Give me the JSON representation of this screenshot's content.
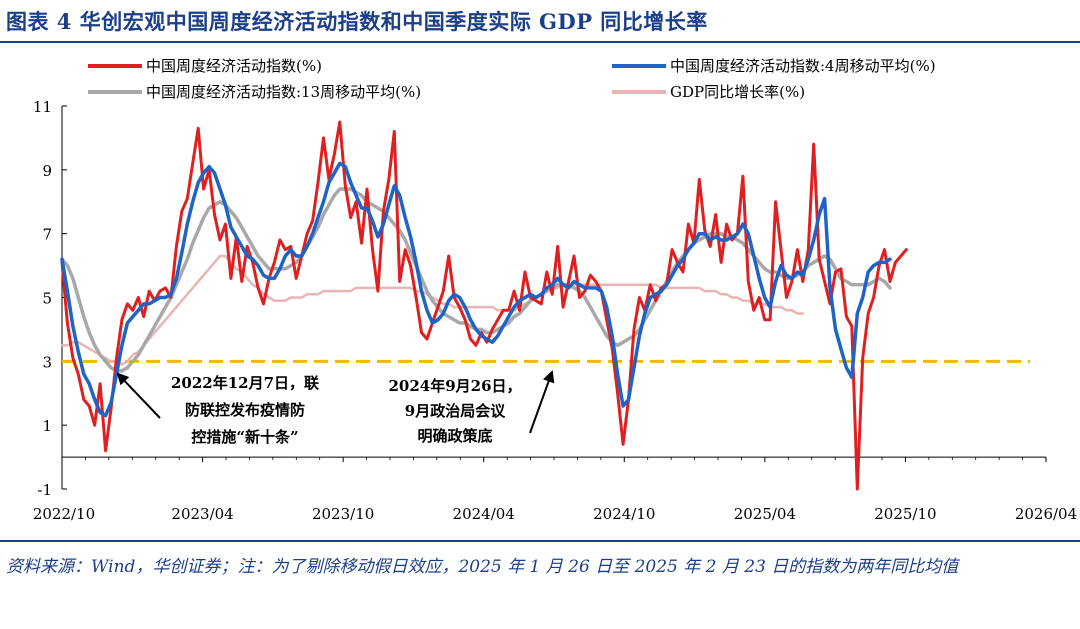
{
  "title": "图表 4   华创宏观中国周度经济活动指数和中国季度实际 GDP 同比增长率",
  "source_note": "资料来源：Wind，华创证券；注：为了剔除移动假日效应，2025 年 1 月 26 日至 2025 年 2 月 23 日的指数为两年同比均值",
  "chart_data": {
    "type": "line",
    "x_range": [
      "2022-10",
      "2026-04"
    ],
    "ylim": [
      -1,
      11
    ],
    "yticks": [
      -1,
      1,
      3,
      5,
      7,
      9,
      11
    ],
    "xticks": [
      "2022/10",
      "2023/04",
      "2023/10",
      "2024/04",
      "2024/10",
      "2025/04",
      "2025/10",
      "2026/04"
    ],
    "grid": false,
    "legend_position": "top",
    "reference_line": {
      "y": 3,
      "style": "dashed",
      "color": "#f5b800"
    },
    "series": [
      {
        "name": "中国周度经济活动指数(%)",
        "color": "#e02020",
        "x_start": 0,
        "x_step": 0.2325,
        "values": [
          6.1,
          4.2,
          3.1,
          2.6,
          1.8,
          1.6,
          1.0,
          2.3,
          0.2,
          1.5,
          3.1,
          4.3,
          4.8,
          4.6,
          5.0,
          4.4,
          5.2,
          4.9,
          5.2,
          5.3,
          5.0,
          6.6,
          7.7,
          8.1,
          9.2,
          10.3,
          8.4,
          9.0,
          7.6,
          6.8,
          7.3,
          5.6,
          6.9,
          5.5,
          6.6,
          6.1,
          5.3,
          4.8,
          5.6,
          6.1,
          6.8,
          6.5,
          6.6,
          5.6,
          6.3,
          7.0,
          7.4,
          8.6,
          10.0,
          8.7,
          9.5,
          10.5,
          8.5,
          7.5,
          8.0,
          6.7,
          8.4,
          6.5,
          5.2,
          7.7,
          8.7,
          10.2,
          5.5,
          6.5,
          6.0,
          5.0,
          3.9,
          3.7,
          4.2,
          4.7,
          5.2,
          6.3,
          5.0,
          4.7,
          4.3,
          3.7,
          3.5,
          3.9,
          3.6,
          4.0,
          4.3,
          4.6,
          4.6,
          5.2,
          4.6,
          5.8,
          5.0,
          4.9,
          4.8,
          5.8,
          5.1,
          6.6,
          4.7,
          5.5,
          6.3,
          5.0,
          5.2,
          5.7,
          5.5,
          5.2,
          4.3,
          3.4,
          2.0,
          0.4,
          1.8,
          4.0,
          5.0,
          4.6,
          5.4,
          4.9,
          5.3,
          5.4,
          6.5,
          6.1,
          5.8,
          7.3,
          6.7,
          8.7,
          7.1,
          6.6,
          7.6,
          6.1,
          7.3,
          6.8,
          7.0,
          8.8,
          5.5,
          4.6,
          5.0,
          4.3,
          4.3,
          8.0,
          6.5,
          5.0,
          5.5,
          6.5,
          5.5,
          6.5,
          9.8,
          6.2,
          5.5,
          4.8,
          5.8,
          5.9,
          4.4,
          4.1,
          -1.0,
          3.1,
          4.5,
          5.0,
          6.0,
          6.5,
          5.5,
          6.1,
          6.3,
          6.5
        ]
      },
      {
        "name": "中国周度经济活动指数:4周移动平均(%)",
        "color": "#1f63c6",
        "x_start": 0,
        "x_step": 0.2325,
        "values": [
          6.2,
          5.2,
          4.1,
          3.3,
          2.6,
          2.3,
          1.8,
          1.4,
          1.3,
          1.7,
          2.6,
          3.5,
          4.2,
          4.4,
          4.6,
          4.8,
          4.8,
          4.9,
          5.0,
          5.0,
          5.1,
          5.6,
          6.4,
          7.3,
          8.0,
          8.6,
          8.9,
          9.1,
          8.9,
          8.4,
          7.9,
          7.2,
          6.9,
          6.6,
          6.3,
          6.2,
          6.0,
          5.7,
          5.6,
          5.6,
          5.9,
          6.3,
          6.5,
          6.3,
          6.3,
          6.6,
          7.0,
          7.5,
          8.0,
          8.6,
          8.9,
          9.2,
          9.1,
          8.6,
          8.2,
          7.8,
          7.8,
          7.4,
          6.9,
          7.3,
          7.9,
          8.5,
          8.2,
          7.5,
          6.9,
          6.1,
          5.2,
          4.6,
          4.2,
          4.3,
          4.5,
          4.9,
          5.1,
          5.0,
          4.7,
          4.3,
          4.0,
          3.8,
          3.7,
          3.6,
          3.8,
          4.1,
          4.4,
          4.7,
          4.9,
          5.0,
          5.1,
          5.0,
          5.1,
          5.3,
          5.4,
          5.6,
          5.4,
          5.3,
          5.5,
          5.4,
          5.3,
          5.3,
          5.3,
          5.2,
          4.7,
          3.8,
          2.6,
          1.6,
          1.8,
          2.8,
          3.8,
          4.5,
          5.0,
          5.1,
          5.2,
          5.4,
          5.7,
          6.0,
          6.2,
          6.5,
          6.7,
          7.0,
          7.0,
          6.8,
          6.9,
          6.8,
          6.8,
          6.9,
          7.0,
          7.3,
          7.0,
          6.3,
          5.6,
          5.0,
          4.7,
          5.5,
          6.0,
          5.7,
          5.6,
          5.8,
          5.7,
          6.2,
          6.8,
          7.6,
          8.1,
          5.3,
          4.0,
          3.4,
          2.8,
          2.5,
          4.5,
          5.0,
          5.8,
          6.0,
          6.1,
          6.1,
          6.2
        ]
      },
      {
        "name": "中国周度经济活动指数:13周移动平均(%)",
        "color": "#a8a8a8",
        "x_start": 0,
        "x_step": 0.2325,
        "values": [
          6.2,
          6.0,
          5.6,
          5.0,
          4.4,
          3.9,
          3.5,
          3.2,
          3.0,
          2.8,
          2.7,
          2.7,
          2.8,
          3.0,
          3.2,
          3.5,
          3.8,
          4.1,
          4.4,
          4.7,
          5.0,
          5.4,
          5.8,
          6.2,
          6.7,
          7.1,
          7.5,
          7.8,
          7.9,
          8.0,
          7.9,
          7.7,
          7.5,
          7.2,
          6.9,
          6.6,
          6.3,
          6.1,
          5.9,
          5.9,
          5.9,
          5.9,
          6.0,
          6.1,
          6.3,
          6.6,
          6.9,
          7.2,
          7.6,
          7.9,
          8.2,
          8.4,
          8.4,
          8.4,
          8.3,
          8.2,
          8.0,
          7.9,
          7.8,
          7.7,
          7.5,
          7.3,
          7.1,
          6.8,
          6.4,
          6.0,
          5.6,
          5.2,
          4.9,
          4.7,
          4.5,
          4.4,
          4.3,
          4.2,
          4.2,
          4.1,
          4.0,
          4.0,
          3.9,
          3.9,
          4.0,
          4.1,
          4.2,
          4.4,
          4.5,
          4.7,
          4.9,
          5.0,
          5.1,
          5.2,
          5.3,
          5.4,
          5.4,
          5.4,
          5.3,
          5.2,
          5.0,
          4.7,
          4.4,
          4.1,
          3.8,
          3.6,
          3.5,
          3.6,
          3.7,
          3.8,
          4.0,
          4.3,
          4.6,
          4.9,
          5.2,
          5.5,
          5.8,
          6.1,
          6.3,
          6.5,
          6.7,
          6.8,
          6.9,
          7.0,
          7.0,
          7.0,
          6.9,
          6.9,
          6.8,
          6.7,
          6.5,
          6.3,
          6.1,
          5.9,
          5.8,
          5.8,
          5.7,
          5.6,
          5.6,
          5.7,
          5.8,
          6.0,
          6.1,
          6.2,
          6.3,
          6.2,
          5.9,
          5.6,
          5.5,
          5.4,
          5.4,
          5.4,
          5.4,
          5.5,
          5.6,
          5.5,
          5.3
        ]
      },
      {
        "name": "GDP同比增长率(%)",
        "color": "#e8b4b4",
        "x_start": 0,
        "x_step": 0.2325,
        "values": [
          3.5,
          3.5,
          3.6,
          3.6,
          3.5,
          3.4,
          3.3,
          3.2,
          3.1,
          3.0,
          3.0,
          2.9,
          3.0,
          3.2,
          3.3,
          3.5,
          3.7,
          3.9,
          4.1,
          4.3,
          4.5,
          4.7,
          4.9,
          5.1,
          5.3,
          5.5,
          5.7,
          5.9,
          6.1,
          6.3,
          6.3,
          6.1,
          5.9,
          5.8,
          5.6,
          5.4,
          5.3,
          5.1,
          5.0,
          4.9,
          4.9,
          4.9,
          5.0,
          5.0,
          5.0,
          5.1,
          5.1,
          5.1,
          5.2,
          5.2,
          5.2,
          5.2,
          5.2,
          5.2,
          5.3,
          5.3,
          5.3,
          5.3,
          5.3,
          5.3,
          5.3,
          5.3,
          5.3,
          5.3,
          5.3,
          5.2,
          5.2,
          5.1,
          5.0,
          4.9,
          4.8,
          4.8,
          4.7,
          4.7,
          4.7,
          4.7,
          4.7,
          4.7,
          4.7,
          4.7,
          4.6,
          4.6,
          4.6,
          4.6,
          4.7,
          4.8,
          4.9,
          5.0,
          5.1,
          5.2,
          5.3,
          5.3,
          5.4,
          5.4,
          5.4,
          5.4,
          5.4,
          5.4,
          5.4,
          5.4,
          5.4,
          5.4,
          5.4,
          5.4,
          5.4,
          5.4,
          5.4,
          5.4,
          5.4,
          5.4,
          5.3,
          5.3,
          5.3,
          5.3,
          5.3,
          5.3,
          5.3,
          5.3,
          5.2,
          5.2,
          5.2,
          5.1,
          5.1,
          5.0,
          5.0,
          4.9,
          4.9,
          4.8,
          4.8,
          4.8,
          4.7,
          4.7,
          4.7,
          4.6,
          4.6,
          4.5,
          4.5
        ]
      }
    ],
    "annotations": [
      {
        "text_lines": [
          "2022年12月7日，联",
          "防联控发布疫情防",
          "控措施“新十条”"
        ]
      },
      {
        "text_lines": [
          "2024年9月26日，",
          "9月政治局会议",
          "明确政策底"
        ]
      }
    ]
  }
}
